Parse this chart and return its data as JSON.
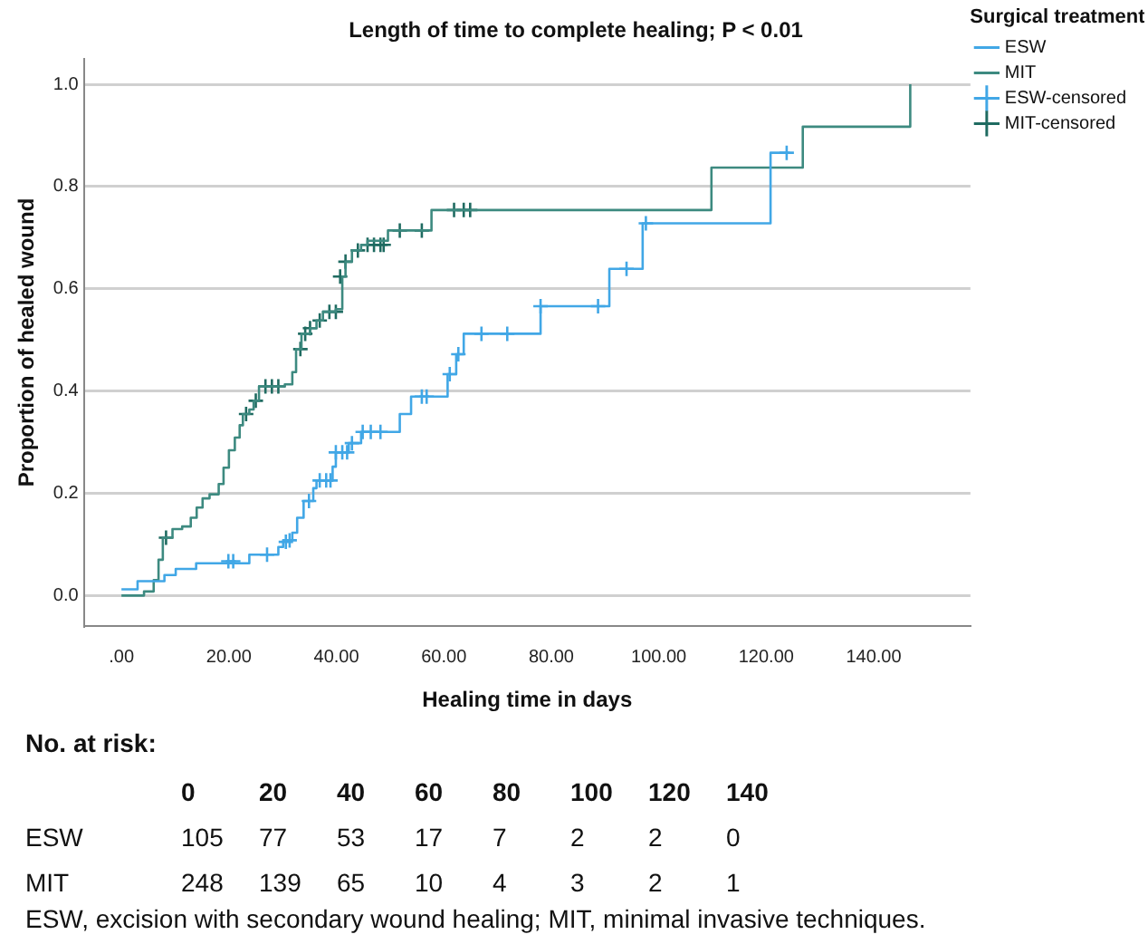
{
  "chart_data": {
    "type": "step",
    "title": "Length of time to complete healing; P < 0.01",
    "xlabel": "Healing time in days",
    "ylabel": "Proportion of healed wound",
    "legend_title": "Surgical treatment",
    "legend": "right",
    "grid": "y",
    "xlim": [
      -7,
      158
    ],
    "xticks": [
      {
        "value": 0,
        "label": ".00"
      },
      {
        "value": 20,
        "label": "20.00"
      },
      {
        "value": 40,
        "label": "40.00"
      },
      {
        "value": 60,
        "label": "60.00"
      },
      {
        "value": 80,
        "label": "80.00"
      },
      {
        "value": 100,
        "label": "100.00"
      },
      {
        "value": 120,
        "label": "120.00"
      },
      {
        "value": 140,
        "label": "140.00"
      }
    ],
    "ylim": [
      -0.06,
      1.05
    ],
    "yticks": [
      {
        "value": 0,
        "label": "0.0"
      },
      {
        "value": 0.2,
        "label": "0.2"
      },
      {
        "value": 0.4,
        "label": "0.4"
      },
      {
        "value": 0.6,
        "label": "0.6"
      },
      {
        "value": 0.8,
        "label": "0.8"
      },
      {
        "value": 1,
        "label": "1.0"
      }
    ],
    "series": [
      {
        "name": "ESW",
        "type": "step",
        "color": "#41a7e6",
        "x": [
          0,
          3,
          8,
          10.1,
          13.9,
          23.8,
          29.2,
          30.1,
          31.8,
          32.7,
          33.9,
          35.7,
          36.3,
          39.3,
          39.9,
          42.3,
          44.6,
          51.8,
          53.9,
          60.7,
          62.3,
          63.7,
          78,
          90.8,
          97,
          120.8,
          124.4
        ],
        "values": [
          0.012,
          0.028,
          0.04,
          0.052,
          0.063,
          0.08,
          0.095,
          0.108,
          0.123,
          0.152,
          0.185,
          0.21,
          0.225,
          0.252,
          0.28,
          0.298,
          0.32,
          0.355,
          0.389,
          0.433,
          0.472,
          0.512,
          0.566,
          0.639,
          0.728,
          0.866,
          0.866
        ]
      },
      {
        "name": "MIT",
        "type": "step",
        "color": "#3d8a80",
        "x": [
          0,
          4.2,
          6,
          6.9,
          7.7,
          9.5,
          11.3,
          12.9,
          14,
          15.1,
          16.4,
          18.1,
          19,
          20,
          21.1,
          22,
          22.6,
          23.8,
          24.6,
          25.6,
          30.4,
          31.8,
          32.5,
          33.5,
          35.1,
          36.3,
          37.5,
          39.9,
          41.1,
          41.7,
          42.9,
          44.6,
          45.8,
          49.6,
          57.7,
          109.8,
          126.8,
          146.8
        ],
        "values": [
          0,
          0.008,
          0.03,
          0.07,
          0.113,
          0.13,
          0.135,
          0.152,
          0.172,
          0.19,
          0.198,
          0.218,
          0.25,
          0.284,
          0.309,
          0.333,
          0.355,
          0.364,
          0.381,
          0.409,
          0.413,
          0.437,
          0.482,
          0.512,
          0.523,
          0.538,
          0.555,
          0.56,
          0.624,
          0.653,
          0.675,
          0.686,
          0.694,
          0.714,
          0.754,
          0.837,
          0.917,
          1
        ]
      },
      {
        "name": "ESW-censored",
        "type": "scatter",
        "marker": "cross",
        "color": "#41a7e6",
        "x": [
          19.9,
          20.8,
          27.1,
          30.6,
          31.3,
          34.9,
          36.9,
          38.1,
          38.9,
          39.9,
          41.1,
          42,
          42.9,
          44.9,
          46.4,
          48.2,
          55.9,
          56.8,
          61.1,
          62.7,
          67,
          71.8,
          78,
          88.7,
          94,
          97.6,
          123.8
        ],
        "values": [
          0.067,
          0.067,
          0.08,
          0.105,
          0.108,
          0.185,
          0.225,
          0.225,
          0.225,
          0.28,
          0.28,
          0.28,
          0.298,
          0.32,
          0.32,
          0.32,
          0.389,
          0.389,
          0.433,
          0.472,
          0.512,
          0.512,
          0.566,
          0.566,
          0.639,
          0.728,
          0.866
        ]
      },
      {
        "name": "MIT-censored",
        "type": "scatter",
        "marker": "cross",
        "color": "#1f6b61",
        "x": [
          8.3,
          23.2,
          25,
          26.8,
          28,
          29.2,
          33.3,
          34.2,
          35.1,
          36.9,
          38.7,
          39.9,
          40.7,
          41.7,
          44,
          45.8,
          47,
          48.2,
          48.8,
          51.8,
          55.9,
          61.9,
          63.7,
          64.9
        ],
        "values": [
          0.113,
          0.355,
          0.381,
          0.409,
          0.409,
          0.409,
          0.482,
          0.512,
          0.523,
          0.538,
          0.555,
          0.555,
          0.624,
          0.653,
          0.675,
          0.686,
          0.686,
          0.686,
          0.686,
          0.714,
          0.714,
          0.754,
          0.754,
          0.754
        ]
      }
    ],
    "annotations": [
      "No. at risk:",
      "0 20 40 60 80 100 120 140",
      "ESW 105 77 53 17 7 2 2 0",
      "MIT 248 139 65 10 4 3 2 1",
      "ESW, excision with secondary wound healing; MIT, minimal invasive techniques."
    ]
  }
}
